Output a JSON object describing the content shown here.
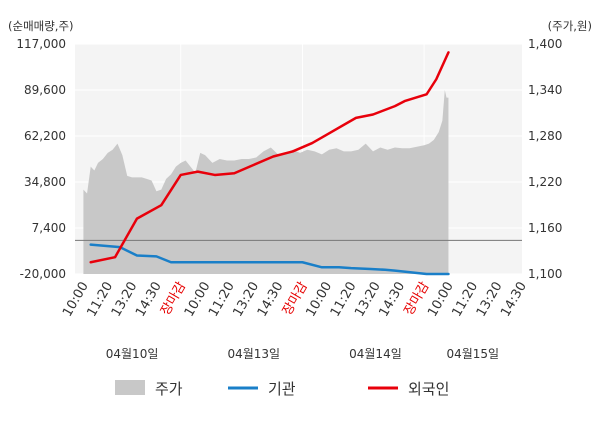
{
  "chart_data": {
    "type": "line",
    "y_left_unit": "(순매매량,주)",
    "y_right_unit": "(주가,원)",
    "y_left_ticks": [
      "117,000",
      "89,600",
      "62,200",
      "34,800",
      "7,400",
      "-20,000"
    ],
    "y_right_ticks": [
      "1,400",
      "1,340",
      "1,280",
      "1,220",
      "1,160",
      "1,100"
    ],
    "y_left_range": [
      -20000,
      117000
    ],
    "y_right_range": [
      1100,
      1400
    ],
    "x_ticks": [
      {
        "label": "10:00",
        "close": false
      },
      {
        "label": "11:20",
        "close": false
      },
      {
        "label": "13:20",
        "close": false
      },
      {
        "label": "14:30",
        "close": false
      },
      {
        "label": "장마감",
        "close": true
      },
      {
        "label": "10:00",
        "close": false
      },
      {
        "label": "11:20",
        "close": false
      },
      {
        "label": "13:20",
        "close": false
      },
      {
        "label": "14:30",
        "close": false
      },
      {
        "label": "장마감",
        "close": true
      },
      {
        "label": "10:00",
        "close": false
      },
      {
        "label": "11:20",
        "close": false
      },
      {
        "label": "13:20",
        "close": false
      },
      {
        "label": "14:30",
        "close": false
      },
      {
        "label": "장마감",
        "close": true
      },
      {
        "label": "10:00",
        "close": false
      },
      {
        "label": "11:20",
        "close": false
      },
      {
        "label": "13:20",
        "close": false
      },
      {
        "label": "14:30",
        "close": false
      }
    ],
    "dates": [
      {
        "label": "04월10일",
        "tick_index": 2
      },
      {
        "label": "04월13일",
        "tick_index": 7
      },
      {
        "label": "04월14일",
        "tick_index": 12
      },
      {
        "label": "04월15일",
        "tick_index": 16
      }
    ],
    "legend": [
      {
        "name": "주가",
        "type": "area",
        "color": "#c8c8c8"
      },
      {
        "name": "기관",
        "type": "line",
        "color": "#1a7fc8"
      },
      {
        "name": "외국인",
        "type": "line",
        "color": "#e8000b"
      }
    ],
    "series": [
      {
        "name": "주가",
        "axis": "right",
        "x": [
          0,
          0.15,
          0.3,
          0.45,
          0.6,
          0.8,
          1.0,
          1.2,
          1.4,
          1.6,
          1.8,
          2.0,
          2.2,
          2.4,
          2.6,
          2.8,
          3.0,
          3.2,
          3.4,
          3.6,
          3.8,
          4.0,
          4.2,
          4.4,
          4.6,
          4.8,
          5.0,
          5.3,
          5.6,
          5.9,
          6.2,
          6.5,
          6.8,
          7.1,
          7.4,
          7.7,
          8.0,
          8.3,
          8.6,
          8.9,
          9.2,
          9.5,
          9.8,
          10.1,
          10.4,
          10.7,
          11.0,
          11.3,
          11.6,
          11.9,
          12.2,
          12.5,
          12.8,
          13.1,
          13.4,
          13.7,
          14.0,
          14.2,
          14.4,
          14.6,
          14.75,
          14.85,
          14.92,
          15.0
        ],
        "values": [
          1210,
          1205,
          1240,
          1235,
          1245,
          1250,
          1258,
          1262,
          1270,
          1255,
          1228,
          1226,
          1226,
          1226,
          1224,
          1222,
          1208,
          1210,
          1224,
          1230,
          1240,
          1245,
          1248,
          1240,
          1232,
          1258,
          1255,
          1245,
          1250,
          1248,
          1248,
          1250,
          1250,
          1252,
          1260,
          1265,
          1256,
          1258,
          1262,
          1258,
          1262,
          1260,
          1256,
          1262,
          1264,
          1260,
          1260,
          1262,
          1270,
          1260,
          1265,
          1262,
          1265,
          1264,
          1264,
          1266,
          1268,
          1270,
          1275,
          1285,
          1300,
          1340,
          1330,
          1330
        ]
      },
      {
        "name": "기관",
        "axis": "left",
        "x": [
          0.3,
          1.5,
          2.2,
          3.0,
          3.6,
          6.0,
          7.0,
          7.8,
          8.3,
          9.0,
          9.8,
          10.5,
          11.0,
          11.8,
          12.4,
          12.8,
          14.1,
          15.0
        ],
        "values": [
          -2500,
          -4000,
          -9000,
          -9500,
          -13000,
          -13000,
          -13000,
          -13000,
          -13000,
          -13000,
          -16000,
          -16000,
          -16500,
          -17000,
          -17500,
          -18000,
          -20000,
          -20000
        ]
      },
      {
        "name": "외국인",
        "axis": "left",
        "x": [
          0.3,
          1.3,
          2.2,
          3.2,
          4.0,
          4.7,
          5.4,
          6.2,
          7.0,
          7.8,
          8.6,
          9.4,
          10.0,
          11.2,
          11.9,
          12.8,
          13.2,
          14.1,
          14.5,
          15.0
        ],
        "values": [
          -13000,
          -10000,
          13000,
          21000,
          39000,
          41000,
          39000,
          40000,
          45000,
          50000,
          53000,
          58000,
          63000,
          73000,
          75000,
          80000,
          83000,
          87000,
          96000,
          112000
        ]
      }
    ],
    "grid": true,
    "baseline_value": 0
  }
}
